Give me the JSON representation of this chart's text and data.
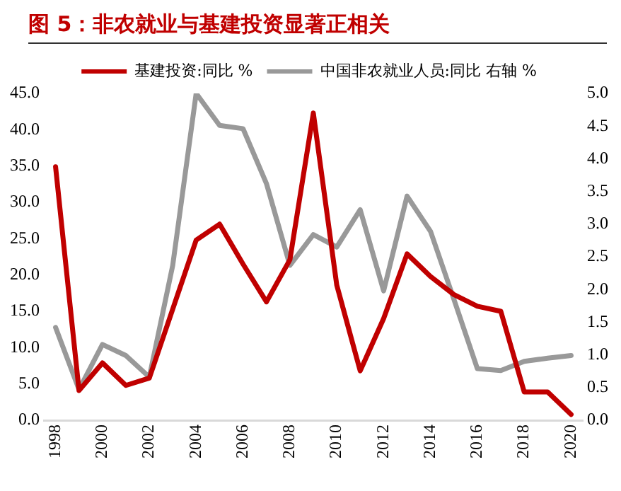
{
  "chart_data": {
    "type": "line",
    "title": "图 5：非农就业与基建投资显著正相关",
    "x": [
      1998,
      1999,
      2000,
      2001,
      2002,
      2003,
      2004,
      2005,
      2006,
      2007,
      2008,
      2009,
      2010,
      2011,
      2012,
      2013,
      2014,
      2015,
      2016,
      2017,
      2018,
      2019,
      2020
    ],
    "series": [
      {
        "name": "基建投资:同比 %",
        "color": "#c00000",
        "values": [
          34.9,
          4.1,
          7.9,
          4.8,
          5.8,
          15.3,
          24.8,
          27.0,
          21.5,
          16.3,
          22.1,
          42.3,
          18.6,
          6.8,
          14.0,
          22.9,
          19.8,
          17.3,
          15.7,
          15.0,
          3.9,
          3.9,
          0.8
        ]
      },
      {
        "name": "中国非农就业人员:同比 右轴 %",
        "color": "#999999",
        "axis": "y2",
        "values": [
          1.42,
          0.47,
          1.16,
          0.99,
          0.66,
          2.37,
          5.0,
          4.51,
          4.46,
          3.62,
          2.37,
          2.84,
          2.65,
          3.22,
          1.98,
          3.43,
          2.89,
          1.85,
          0.79,
          0.76,
          0.9,
          0.95,
          0.99
        ]
      }
    ],
    "xlim": [
      1997.5,
      2020.5
    ],
    "xticks": [
      1998,
      2000,
      2002,
      2004,
      2006,
      2008,
      2010,
      2012,
      2014,
      2016,
      2018,
      2020
    ],
    "ylim": [
      0,
      45
    ],
    "yticks": [
      {
        "value": 0,
        "label": "0.0"
      },
      {
        "value": 5,
        "label": "5.0"
      },
      {
        "value": 10,
        "label": "10.0"
      },
      {
        "value": 15,
        "label": "15.0"
      },
      {
        "value": 20,
        "label": "20.0"
      },
      {
        "value": 25,
        "label": "25.0"
      },
      {
        "value": 30,
        "label": "30.0"
      },
      {
        "value": 35,
        "label": "35.0"
      },
      {
        "value": 40,
        "label": "40.0"
      },
      {
        "value": 45,
        "label": "45.0"
      }
    ],
    "y2lim": [
      0,
      5
    ],
    "y2ticks": [
      {
        "value": 0,
        "label": "0.0"
      },
      {
        "value": 0.5,
        "label": "0.5"
      },
      {
        "value": 1,
        "label": "1.0"
      },
      {
        "value": 1.5,
        "label": "1.5"
      },
      {
        "value": 2,
        "label": "2.0"
      },
      {
        "value": 2.5,
        "label": "2.5"
      },
      {
        "value": 3,
        "label": "3.0"
      },
      {
        "value": 3.5,
        "label": "3.5"
      },
      {
        "value": 4,
        "label": "4.0"
      },
      {
        "value": 4.5,
        "label": "4.5"
      },
      {
        "value": 5,
        "label": "5.0"
      }
    ],
    "grid": false,
    "legend": "top",
    "marker": "none",
    "line_style": "solid"
  }
}
